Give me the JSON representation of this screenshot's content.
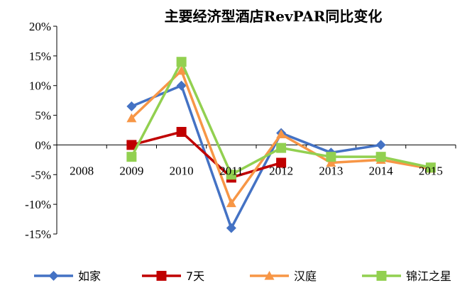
{
  "chart_data": {
    "type": "line",
    "title": "主要经济型酒店RevPAR同比变化",
    "xlabel": "",
    "ylabel": "",
    "categories": [
      "2008",
      "2009",
      "2010",
      "2011",
      "2012",
      "2013",
      "2014",
      "2015"
    ],
    "y_ticks": [
      "20%",
      "15%",
      "10%",
      "5%",
      "0%",
      "-5%",
      "-10%",
      "-15%"
    ],
    "ylim": [
      -15,
      20
    ],
    "grid": false,
    "legend_position": "bottom",
    "series": [
      {
        "name": "如家",
        "color": "#4472C4",
        "marker": "diamond",
        "values": [
          null,
          6.5,
          10.0,
          -14.0,
          2.0,
          -1.3,
          0.0,
          null
        ]
      },
      {
        "name": "7天",
        "color": "#C00000",
        "marker": "square",
        "values": [
          null,
          0.0,
          2.2,
          -5.5,
          -3.0,
          null,
          null,
          null
        ]
      },
      {
        "name": "汉庭",
        "color": "#F79646",
        "marker": "triangle",
        "values": [
          null,
          4.5,
          12.5,
          -9.8,
          1.8,
          -3.0,
          -2.5,
          -4.0
        ]
      },
      {
        "name": "锦江之星",
        "color": "#92D050",
        "marker": "square",
        "values": [
          null,
          -2.0,
          14.0,
          -5.0,
          -0.5,
          -2.0,
          -2.0,
          -3.8
        ]
      }
    ]
  }
}
